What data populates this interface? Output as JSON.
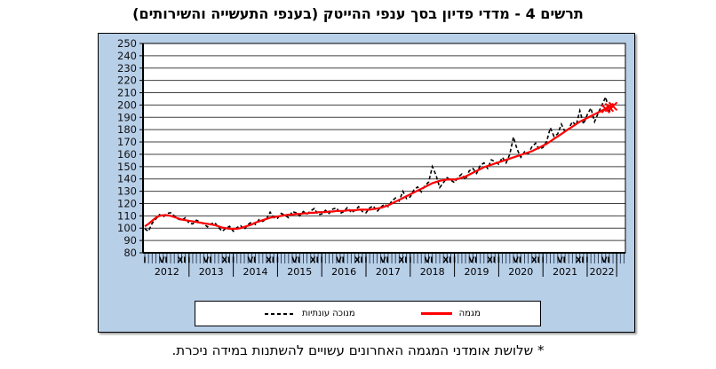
{
  "title": "תרשים 4 - מדדי פדיון בסך ענפי ההייטק (בענפי התעשייה והשירותים)",
  "footnote": "* שלושת אומדני המגמה האחרונים עשויים להשתנות במידה ניכרת.",
  "colors": {
    "container_bg": "#b8cfe8",
    "plot_bg": "#ffffff",
    "grid": "#404040",
    "seasonal_line": "#000000",
    "trend_line": "#ff0000",
    "text": "#000000"
  },
  "chart_data": {
    "type": "line",
    "title": "תרשים 4 - מדדי פדיון בסך ענפי ההייטק (בענפי התעשייה והשירותים)",
    "xlabel": "",
    "ylabel": "",
    "ylim": [
      80,
      250
    ],
    "ytick_step": 10,
    "yticks": [
      80,
      90,
      100,
      110,
      120,
      130,
      140,
      150,
      160,
      170,
      180,
      190,
      200,
      210,
      220,
      230,
      240,
      250
    ],
    "grid": true,
    "legend_position": "bottom",
    "x_frequency": "monthly",
    "x_start": "2012-01",
    "x_end": "2022-08",
    "years": [
      2012,
      2013,
      2014,
      2015,
      2016,
      2017,
      2018,
      2019,
      2020,
      2021,
      2022
    ],
    "month_tick_labels": [
      "I",
      "VI",
      "XI"
    ],
    "month_tick_label_positions": [
      1,
      6,
      11
    ],
    "annotation": "* שלושת אומדני המגמה האחרונים עשויים להשתנות במידה ניכרת.",
    "series": [
      {
        "name": "מנוכה עונתיות",
        "style": "dashed",
        "color": "#000000",
        "values": [
          99.5,
          97.5,
          104,
          107.5,
          111,
          109,
          112,
          112.5,
          110,
          107.5,
          106.5,
          108.5,
          104,
          103.5,
          106.5,
          105,
          103.5,
          101,
          103.5,
          104.5,
          100.5,
          97.5,
          100,
          101.5,
          97.5,
          100.5,
          102,
          99,
          103,
          105,
          103,
          107,
          105.5,
          107.5,
          113,
          108.5,
          108,
          112,
          110.5,
          108.5,
          113.5,
          112.5,
          110,
          113.5,
          111.5,
          114,
          116,
          111,
          111.5,
          114.5,
          112,
          115.5,
          116.5,
          112,
          113.5,
          117,
          112.5,
          114.5,
          117.5,
          113.5,
          112.5,
          116.5,
          118,
          113.5,
          117,
          119.5,
          117.5,
          122,
          124.5,
          122,
          130,
          124,
          125.5,
          131,
          133.5,
          129.5,
          134.5,
          137.5,
          150,
          143,
          133,
          137,
          141,
          139,
          137,
          141.5,
          144,
          139.5,
          146.5,
          148.5,
          144.5,
          151,
          153,
          148.5,
          155.5,
          154,
          152,
          157.5,
          153,
          160,
          174,
          164,
          157.5,
          162,
          160.5,
          166,
          169,
          164,
          165.5,
          170.5,
          181.5,
          174.5,
          176.5,
          184.5,
          178,
          181,
          186.5,
          183.5,
          195.5,
          184.5,
          192,
          197.5,
          186.5,
          193.5,
          200,
          206.5,
          194.5,
          199.5
        ]
      },
      {
        "name": "מגמה",
        "style": "solid",
        "color": "#ff0000",
        "last_n_provisional": 3,
        "provisional_marker": "x",
        "values": [
          101.5,
          103.5,
          106,
          108.5,
          110,
          110.5,
          110.5,
          110,
          109,
          108,
          107,
          106.5,
          106,
          105.5,
          105,
          104.5,
          104,
          103.5,
          103,
          102.5,
          101.5,
          100.5,
          100,
          99.5,
          99.5,
          99.5,
          100,
          101,
          102,
          103,
          104.5,
          105.5,
          106.5,
          107.5,
          108.5,
          109,
          109.5,
          110,
          110.5,
          111,
          111,
          111.5,
          111.5,
          112,
          112,
          112.5,
          112.5,
          113,
          113,
          113,
          113.5,
          113.5,
          114,
          114,
          114,
          114.5,
          114.5,
          114.5,
          115,
          115,
          115,
          115,
          115.5,
          116,
          116.5,
          117.5,
          118.5,
          120,
          121.5,
          123,
          124.5,
          126,
          127.5,
          129,
          130.5,
          132,
          133.5,
          135,
          136.5,
          137.5,
          138.5,
          139,
          139.5,
          139.5,
          139.5,
          140,
          141,
          142,
          143.5,
          145,
          146.5,
          148,
          149.5,
          150.5,
          151.5,
          152.5,
          153.5,
          154.5,
          155.5,
          156.5,
          157.5,
          158.5,
          159.5,
          160.5,
          161.5,
          162.5,
          164,
          165.5,
          167,
          168.5,
          170.5,
          172.5,
          174.5,
          176.5,
          178.5,
          180.5,
          182.5,
          184.5,
          186.5,
          188,
          189.5,
          191,
          192.5,
          194,
          195.5,
          197,
          198,
          199
        ]
      }
    ]
  }
}
